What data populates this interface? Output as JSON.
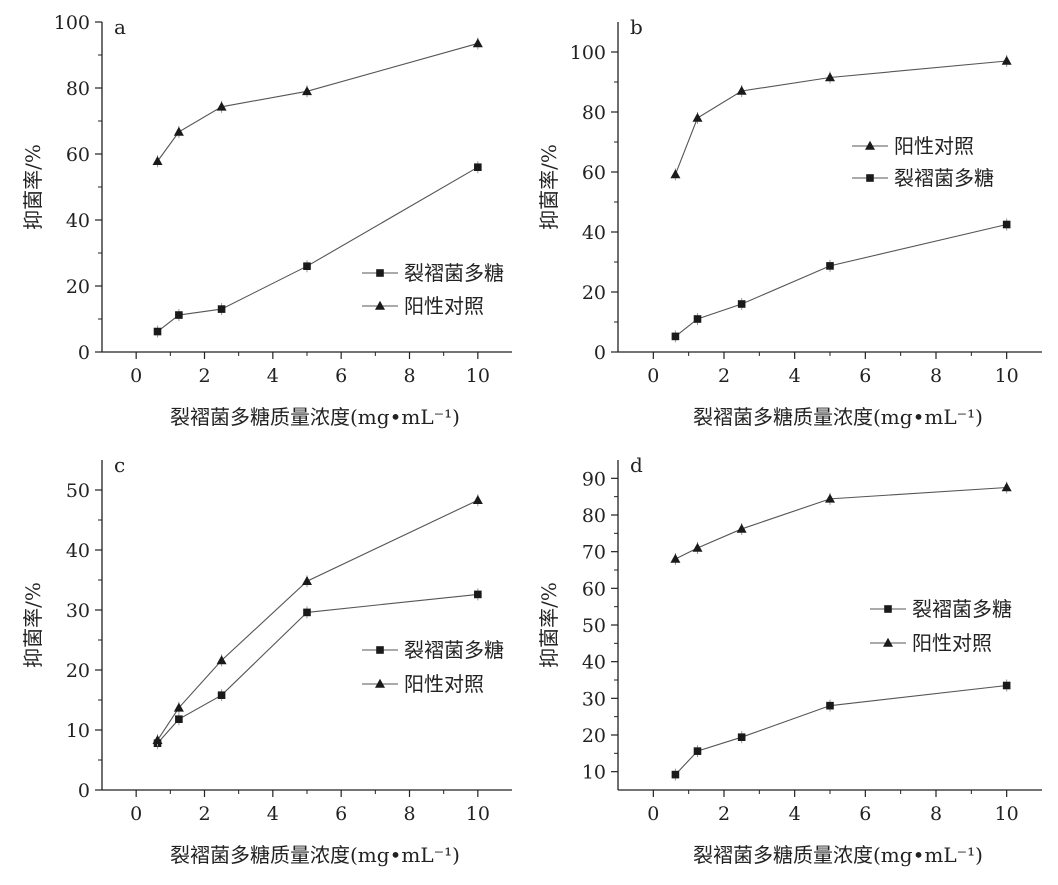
{
  "chart_data": [
    {
      "type": "line",
      "panel_label": "a",
      "x": [
        0.625,
        1.25,
        2.5,
        5,
        10
      ],
      "series": [
        {
          "name": "裂褶菌多糖",
          "marker": "square",
          "values": [
            6.2,
            11.2,
            13.0,
            26.0,
            56.0
          ]
        },
        {
          "name": "阳性对照",
          "marker": "triangle",
          "values": [
            57.8,
            66.7,
            74.3,
            79.0,
            93.5
          ]
        }
      ],
      "legend_order": [
        0,
        1
      ],
      "legend_position": "lower-right",
      "xlabel": "裂褶菌多糖质量浓度(mg•mL⁻¹)",
      "ylabel": "抑菌率/%",
      "xlim": [
        -1,
        11
      ],
      "ylim": [
        0,
        100
      ],
      "xticks": [
        0,
        2,
        4,
        6,
        8,
        10
      ],
      "yticks": [
        0,
        20,
        40,
        60,
        80,
        100
      ]
    },
    {
      "type": "line",
      "panel_label": "b",
      "x": [
        0.625,
        1.25,
        2.5,
        5,
        10
      ],
      "series": [
        {
          "name": "裂褶菌多糖",
          "marker": "square",
          "values": [
            5.2,
            11.0,
            16.0,
            28.7,
            42.5
          ]
        },
        {
          "name": "阳性对照",
          "marker": "triangle",
          "values": [
            59.2,
            78.0,
            87.0,
            91.5,
            97.0
          ]
        }
      ],
      "legend_order": [
        1,
        0
      ],
      "legend_position": "right",
      "xlabel": "裂褶菌多糖质量浓度(mg•mL⁻¹)",
      "ylabel": "抑菌率/%",
      "xlim": [
        -1,
        11
      ],
      "ylim": [
        0,
        110
      ],
      "xticks": [
        0,
        2,
        4,
        6,
        8,
        10
      ],
      "yticks": [
        0,
        20,
        40,
        60,
        80,
        100
      ]
    },
    {
      "type": "line",
      "panel_label": "c",
      "x": [
        0.625,
        1.25,
        2.5,
        5,
        10
      ],
      "series": [
        {
          "name": "裂褶菌多糖",
          "marker": "square",
          "values": [
            7.8,
            11.8,
            15.8,
            29.6,
            32.6
          ]
        },
        {
          "name": "阳性对照",
          "marker": "triangle",
          "values": [
            8.3,
            13.7,
            21.6,
            34.8,
            48.3
          ]
        }
      ],
      "legend_order": [
        0,
        1
      ],
      "legend_position": "right",
      "xlabel": "裂褶菌多糖质量浓度(mg•mL⁻¹)",
      "ylabel": "抑菌率/%",
      "xlim": [
        -1,
        11
      ],
      "ylim": [
        0,
        55
      ],
      "xticks": [
        0,
        2,
        4,
        6,
        8,
        10
      ],
      "yticks": [
        0,
        10,
        20,
        30,
        40,
        50
      ]
    },
    {
      "type": "line",
      "panel_label": "d",
      "x": [
        0.625,
        1.25,
        2.5,
        5,
        10
      ],
      "series": [
        {
          "name": "裂褶菌多糖",
          "marker": "square",
          "values": [
            9.2,
            15.6,
            19.4,
            28.0,
            33.5
          ]
        },
        {
          "name": "阳性对照",
          "marker": "triangle",
          "values": [
            68.0,
            71.0,
            76.2,
            84.4,
            87.5
          ]
        }
      ],
      "legend_order": [
        0,
        1
      ],
      "legend_position": "right",
      "xlabel": "裂褶菌多糖质量浓度(mg•mL⁻¹)",
      "ylabel": "抑菌率/%",
      "xlim": [
        -1,
        11
      ],
      "ylim": [
        5,
        95
      ],
      "xticks": [
        0,
        2,
        4,
        6,
        8,
        10
      ],
      "yticks": [
        10,
        20,
        30,
        40,
        50,
        60,
        70,
        80,
        90
      ]
    }
  ]
}
